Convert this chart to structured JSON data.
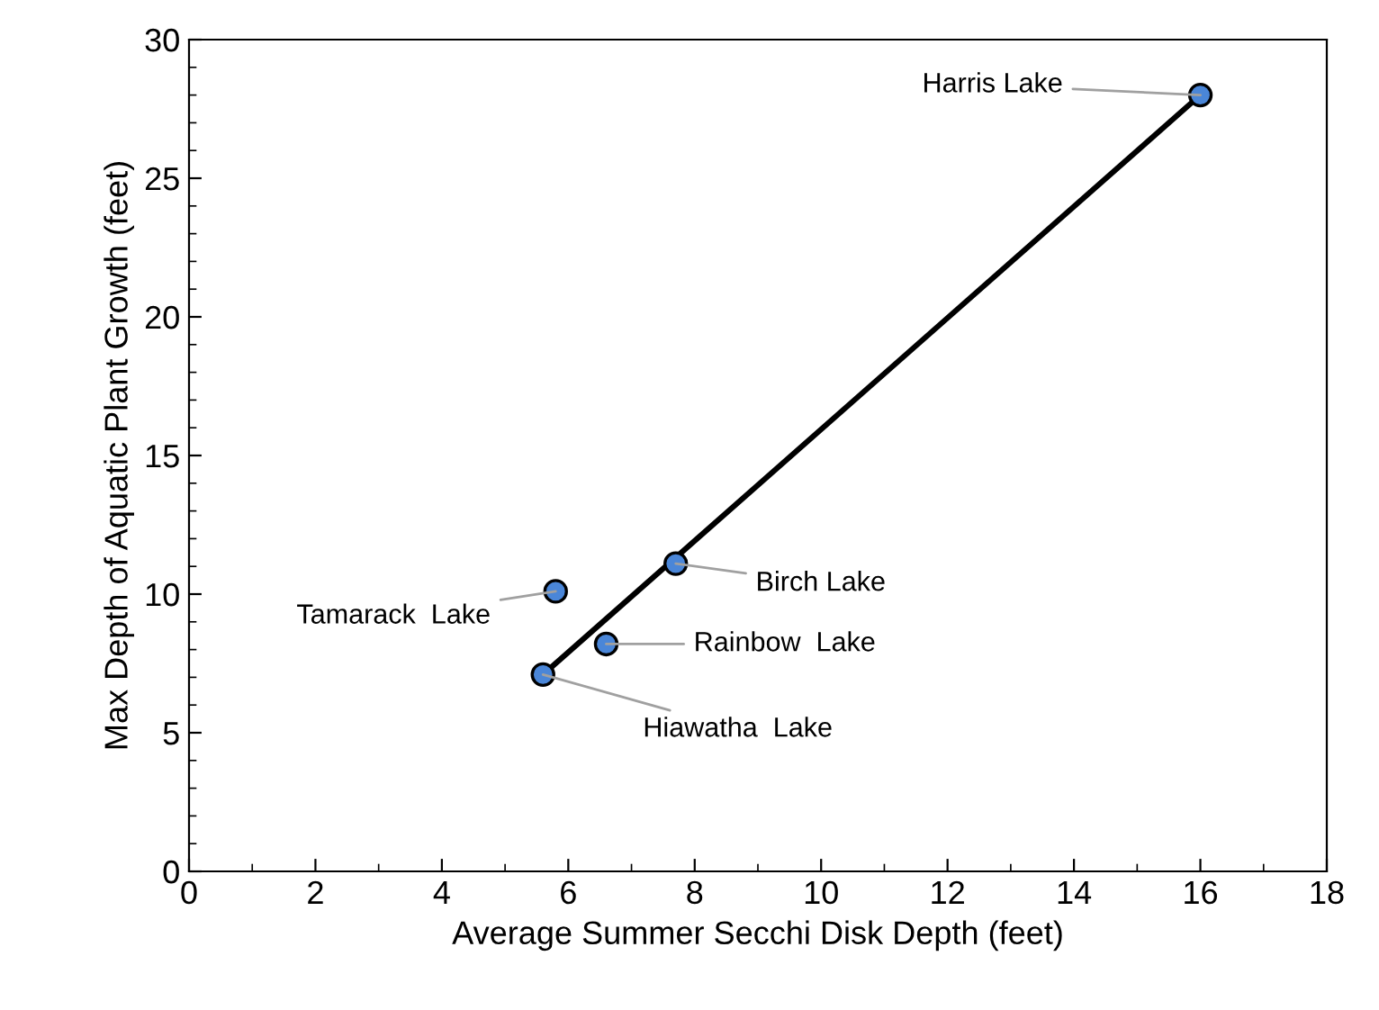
{
  "chart_data": {
    "type": "scatter",
    "xlabel": "Average Summer Secchi Disk Depth (feet)",
    "ylabel": "Max Depth of Aquatic Plant Growth (feet)",
    "xlim": [
      0,
      18
    ],
    "ylim": [
      0,
      30
    ],
    "xticks": [
      0,
      2,
      4,
      6,
      8,
      10,
      12,
      14,
      16,
      18
    ],
    "yticks": [
      0,
      5,
      10,
      15,
      20,
      25,
      30
    ],
    "grid": false,
    "legend": false,
    "series": [
      {
        "color": "#4a86d8",
        "marker": "circle",
        "x": [
          16.0,
          7.7,
          5.8,
          6.6,
          5.6
        ],
        "values": [
          28.0,
          11.1,
          10.1,
          8.2,
          7.1
        ]
      },
      {
        "type": "line",
        "color": "#000000",
        "x": [
          5.6,
          16.0
        ],
        "values": [
          7.1,
          28.0
        ],
        "line_style": "solid"
      }
    ],
    "annotations": [
      {
        "text": "Harris Lake",
        "x": 16.0,
        "y": 28.0
      },
      {
        "text": "Birch Lake",
        "x": 7.7,
        "y": 11.1
      },
      {
        "text": "Tamarack  Lake",
        "x": 5.8,
        "y": 10.1
      },
      {
        "text": "Rainbow  Lake",
        "x": 6.6,
        "y": 8.2
      },
      {
        "text": "Hiawatha  Lake",
        "x": 5.6,
        "y": 7.1
      }
    ]
  }
}
